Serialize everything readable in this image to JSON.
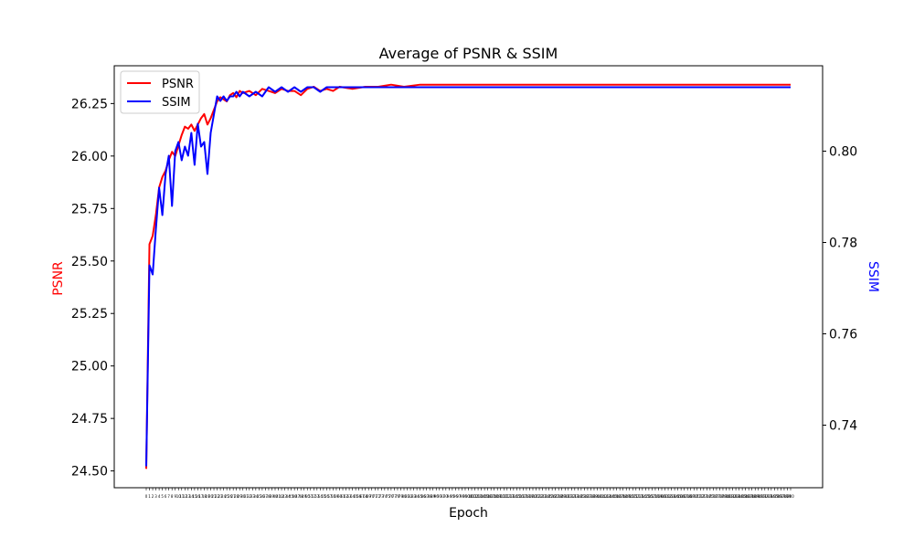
{
  "chart_data": {
    "type": "line",
    "title": "Average of PSNR & SSIM",
    "xlabel": "Epoch",
    "ylabel_left": "PSNR",
    "ylabel_right": "SSIM",
    "xlim": [
      0,
      200
    ],
    "ylim_left": [
      24.42,
      26.43
    ],
    "ylim_right": [
      0.7263,
      0.8187
    ],
    "yticks_left": [
      "24.50",
      "24.75",
      "25.00",
      "25.25",
      "25.50",
      "25.75",
      "26.00",
      "26.25"
    ],
    "yticks_right": [
      "0.74",
      "0.76",
      "0.78",
      "0.80"
    ],
    "legend": {
      "placement": "upper-left",
      "entries": [
        "PSNR",
        "SSIM"
      ]
    },
    "colors": {
      "PSNR": "#ff0000",
      "SSIM": "#0000ff"
    },
    "grid": false,
    "series": [
      {
        "name": "PSNR",
        "axis": "left",
        "x": [
          0,
          1,
          2,
          3,
          4,
          5,
          6,
          7,
          8,
          9,
          10,
          11,
          12,
          13,
          14,
          15,
          16,
          17,
          18,
          19,
          20,
          21,
          22,
          23,
          24,
          25,
          26,
          27,
          28,
          29,
          30,
          32,
          34,
          36,
          38,
          40,
          42,
          44,
          46,
          48,
          50,
          52,
          54,
          56,
          58,
          60,
          64,
          68,
          72,
          76,
          80,
          85,
          90,
          100,
          110,
          120,
          140,
          160,
          180,
          200
        ],
        "values": [
          24.51,
          25.58,
          25.62,
          25.72,
          25.85,
          25.9,
          25.93,
          25.98,
          26.02,
          26.0,
          26.05,
          26.1,
          26.14,
          26.13,
          26.15,
          26.12,
          26.15,
          26.18,
          26.2,
          26.15,
          26.18,
          26.22,
          26.26,
          26.28,
          26.27,
          26.26,
          26.29,
          26.3,
          26.28,
          26.31,
          26.3,
          26.31,
          26.29,
          26.32,
          26.31,
          26.3,
          26.32,
          26.31,
          26.31,
          26.29,
          26.32,
          26.33,
          26.31,
          26.32,
          26.31,
          26.33,
          26.32,
          26.33,
          26.33,
          26.34,
          26.33,
          26.34,
          26.34,
          26.34,
          26.34,
          26.34,
          26.34,
          26.34,
          26.34,
          26.34
        ]
      },
      {
        "name": "SSIM",
        "axis": "right",
        "x": [
          0,
          1,
          2,
          3,
          4,
          5,
          6,
          7,
          8,
          9,
          10,
          11,
          12,
          13,
          14,
          15,
          16,
          17,
          18,
          19,
          20,
          21,
          22,
          23,
          24,
          25,
          26,
          27,
          28,
          29,
          30,
          32,
          34,
          36,
          38,
          40,
          42,
          44,
          46,
          48,
          50,
          52,
          54,
          56,
          58,
          60,
          64,
          68,
          72,
          76,
          80,
          85,
          90,
          100,
          110,
          120,
          140,
          160,
          180,
          200
        ],
        "values": [
          0.731,
          0.775,
          0.773,
          0.783,
          0.792,
          0.786,
          0.795,
          0.799,
          0.788,
          0.8,
          0.802,
          0.798,
          0.801,
          0.799,
          0.804,
          0.797,
          0.806,
          0.801,
          0.802,
          0.795,
          0.804,
          0.808,
          0.812,
          0.811,
          0.812,
          0.811,
          0.812,
          0.812,
          0.813,
          0.812,
          0.813,
          0.812,
          0.813,
          0.812,
          0.814,
          0.813,
          0.814,
          0.813,
          0.814,
          0.813,
          0.814,
          0.814,
          0.813,
          0.814,
          0.814,
          0.814,
          0.814,
          0.814,
          0.814,
          0.814,
          0.814,
          0.814,
          0.814,
          0.814,
          0.814,
          0.814,
          0.814,
          0.814,
          0.814,
          0.814
        ]
      }
    ]
  }
}
